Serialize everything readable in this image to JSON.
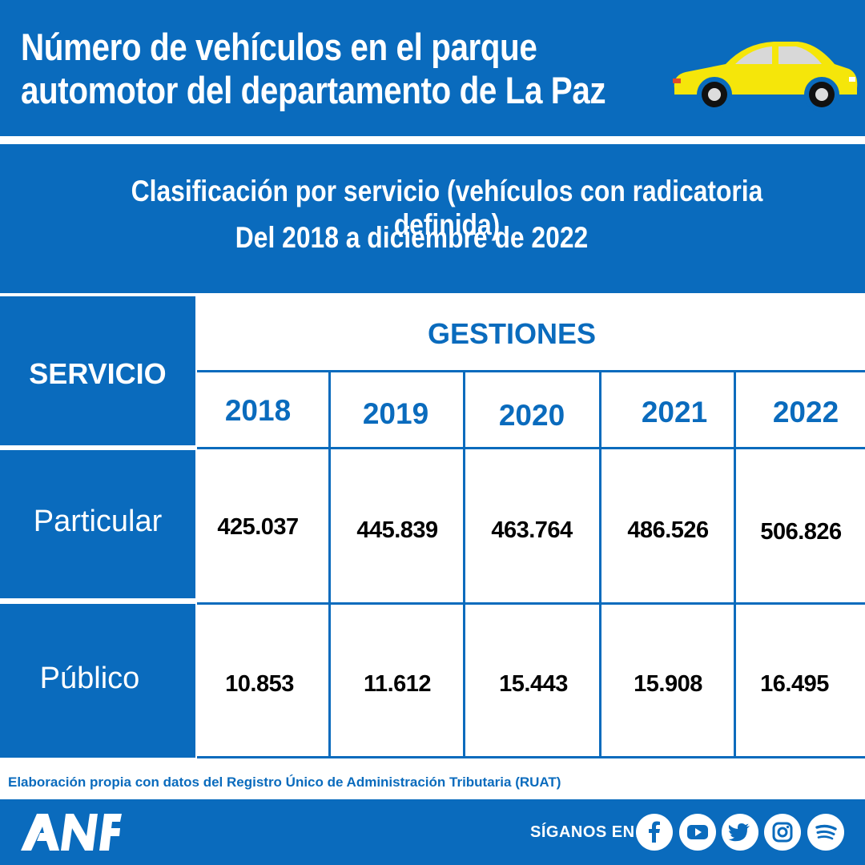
{
  "header": {
    "title": "Número de vehículos en el parque\nautomotor del departamento de La Paz"
  },
  "subheader": {
    "line1": "Clasificación por servicio (vehículos con radicatoria definida)",
    "line2": "Del 2018 a diciembre de 2022"
  },
  "table": {
    "row_header": "SERVICIO",
    "group_header": "GESTIONES",
    "years": [
      "2018",
      "2019",
      "2020",
      "2021",
      "2022"
    ],
    "rows": [
      {
        "label": "Particular",
        "values": [
          "425.037",
          "445.839",
          "463.764",
          "486.526",
          "506.826"
        ]
      },
      {
        "label": "Público",
        "values": [
          "10.853",
          "11.612",
          "15.443",
          "15.908",
          "16.495"
        ]
      }
    ]
  },
  "footer": {
    "source_note": "Elaboración propia con datos del Registro Único de Administración Tributaria (RUAT)",
    "logo_text": "ANF",
    "follow_label": "SÍGANOS EN:",
    "social_icons": [
      "facebook-icon",
      "youtube-icon",
      "twitter-icon",
      "instagram-icon",
      "spotify-icon"
    ]
  },
  "colors": {
    "brand_blue": "#0a6bbd",
    "car_yellow": "#f5e60a",
    "text_black": "#000000"
  }
}
